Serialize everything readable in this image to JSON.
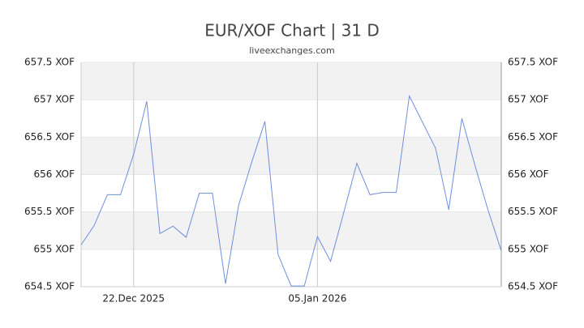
{
  "chart_data": {
    "type": "line",
    "title": "EUR/XOF Chart | 31 D",
    "subtitle": "liveexchanges.com",
    "x": [
      "2025-12-18",
      "2025-12-19",
      "2025-12-20",
      "2025-12-21",
      "2025-12-22",
      "2025-12-23",
      "2025-12-24",
      "2025-12-25",
      "2025-12-26",
      "2025-12-27",
      "2025-12-28",
      "2025-12-29",
      "2025-12-30",
      "2025-12-31",
      "2026-01-01",
      "2026-01-02",
      "2026-01-03",
      "2026-01-04",
      "2026-01-05",
      "2026-01-06",
      "2026-01-07",
      "2026-01-08",
      "2026-01-09",
      "2026-01-10",
      "2026-01-11",
      "2026-01-12",
      "2026-01-13",
      "2026-01-14",
      "2026-01-15",
      "2026-01-16",
      "2026-01-17",
      "2026-01-18",
      "2026-01-19"
    ],
    "series": [
      {
        "name": "EUR/XOF",
        "color": "#6f8fdc",
        "values": [
          655.06,
          655.32,
          655.73,
          655.73,
          656.27,
          656.98,
          655.21,
          655.31,
          655.16,
          655.75,
          655.75,
          654.54,
          655.59,
          656.17,
          656.71,
          654.93,
          654.51,
          654.51,
          655.17,
          654.84,
          655.49,
          656.15,
          655.73,
          655.76,
          655.76,
          657.05,
          656.7,
          656.35,
          655.53,
          656.75,
          656.12,
          655.52,
          654.98
        ]
      }
    ],
    "xlim": [
      "2025-12-18",
      "2026-01-19"
    ],
    "xticks": [
      {
        "value": "2025-12-22",
        "label": "22.Dec 2025"
      },
      {
        "value": "2026-01-05",
        "label": "05.Jan 2026"
      }
    ],
    "ylim": [
      654.5,
      657.5
    ],
    "yticks": [
      {
        "value": 654.5,
        "label": "654.5 XOF"
      },
      {
        "value": 655,
        "label": "655 XOF"
      },
      {
        "value": 655.5,
        "label": "655.5 XOF"
      },
      {
        "value": 656,
        "label": "656 XOF"
      },
      {
        "value": 656.5,
        "label": "656.5 XOF"
      },
      {
        "value": 657,
        "label": "657 XOF"
      },
      {
        "value": 657.5,
        "label": "657.5 XOF"
      }
    ],
    "grid": true
  }
}
